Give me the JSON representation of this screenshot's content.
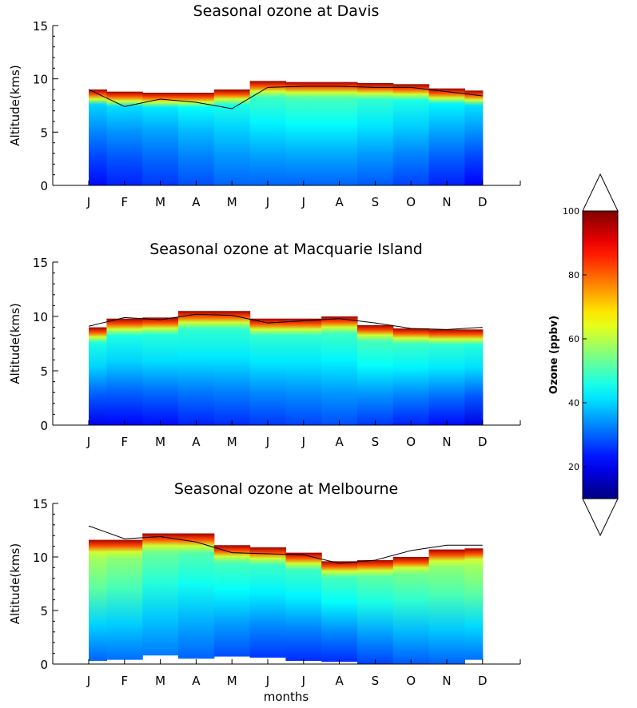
{
  "chart_data": [
    {
      "type": "heatmap",
      "title": "Seasonal ozone at Davis",
      "xlabel": "",
      "ylabel": "Altitude(kms)",
      "x_ticks": [
        "J",
        "F",
        "M",
        "A",
        "M",
        "J",
        "J",
        "A",
        "S",
        "O",
        "N",
        "D"
      ],
      "y_ticks": [
        "0",
        "5",
        "10",
        "15"
      ],
      "ylim": [
        0,
        15
      ],
      "top_of_data_km": [
        9.0,
        8.8,
        8.7,
        8.7,
        9.0,
        9.8,
        9.7,
        9.7,
        9.6,
        9.5,
        9.1,
        8.9
      ],
      "tropopause_km": [
        9.0,
        7.4,
        8.1,
        7.8,
        7.2,
        9.2,
        9.3,
        9.3,
        9.2,
        9.2,
        8.8,
        8.4
      ],
      "surface_ozone_ppbv": [
        22,
        24,
        26,
        28,
        30,
        30,
        30,
        30,
        29,
        27,
        24,
        21
      ],
      "midlevel_ozone_ppbv": [
        34,
        35,
        36,
        38,
        40,
        43,
        44,
        44,
        42,
        40,
        37,
        35
      ]
    },
    {
      "type": "heatmap",
      "title": "Seasonal ozone at Macquarie Island",
      "xlabel": "",
      "ylabel": "Altitude(kms)",
      "x_ticks": [
        "J",
        "F",
        "M",
        "A",
        "M",
        "J",
        "J",
        "A",
        "S",
        "O",
        "N",
        "D"
      ],
      "y_ticks": [
        "0",
        "5",
        "10",
        "15"
      ],
      "ylim": [
        0,
        15
      ],
      "top_of_data_km": [
        9.0,
        9.8,
        9.9,
        10.5,
        10.5,
        9.8,
        9.8,
        10.0,
        9.2,
        8.9,
        8.8,
        8.8
      ],
      "tropopause_km": [
        9.1,
        9.9,
        9.7,
        10.2,
        10.1,
        9.4,
        9.6,
        9.8,
        9.4,
        8.9,
        8.8,
        9.0
      ],
      "surface_ozone_ppbv": [
        20,
        21,
        22,
        24,
        25,
        26,
        27,
        28,
        26,
        24,
        22,
        19
      ],
      "midlevel_ozone_ppbv": [
        40,
        40,
        41,
        42,
        42,
        42,
        42,
        43,
        44,
        43,
        42,
        41
      ]
    },
    {
      "type": "heatmap",
      "title": "Seasonal ozone at Melbourne",
      "xlabel": "months",
      "ylabel": "Altitude(kms)",
      "x_ticks": [
        "J",
        "F",
        "M",
        "A",
        "M",
        "J",
        "J",
        "A",
        "S",
        "O",
        "N",
        "D"
      ],
      "y_ticks": [
        "0",
        "5",
        "10",
        "15"
      ],
      "ylim": [
        0,
        15
      ],
      "top_of_data_km": [
        11.6,
        11.6,
        12.2,
        12.2,
        11.1,
        10.9,
        10.4,
        9.6,
        9.7,
        10.0,
        10.7,
        10.8
      ],
      "bottom_of_data_km": [
        0.3,
        0.4,
        0.8,
        0.5,
        0.7,
        0.6,
        0.3,
        0.2,
        0.0,
        0.0,
        0.0,
        0.4
      ],
      "tropopause_km": [
        12.9,
        11.7,
        11.9,
        11.4,
        10.4,
        10.3,
        10.2,
        9.4,
        9.7,
        10.6,
        11.1,
        11.1
      ],
      "surface_ozone_ppbv": [
        30,
        31,
        32,
        30,
        28,
        26,
        25,
        25,
        27,
        29,
        30,
        31
      ],
      "midlevel_ozone_ppbv": [
        52,
        50,
        47,
        45,
        44,
        43,
        43,
        44,
        46,
        48,
        50,
        52
      ]
    }
  ],
  "colorbar": {
    "label": "Ozone (ppbv)",
    "range": [
      10,
      100
    ],
    "ticks": [
      "20",
      "40",
      "60",
      "80",
      "100"
    ],
    "extend": "both",
    "colormap": "jet"
  }
}
